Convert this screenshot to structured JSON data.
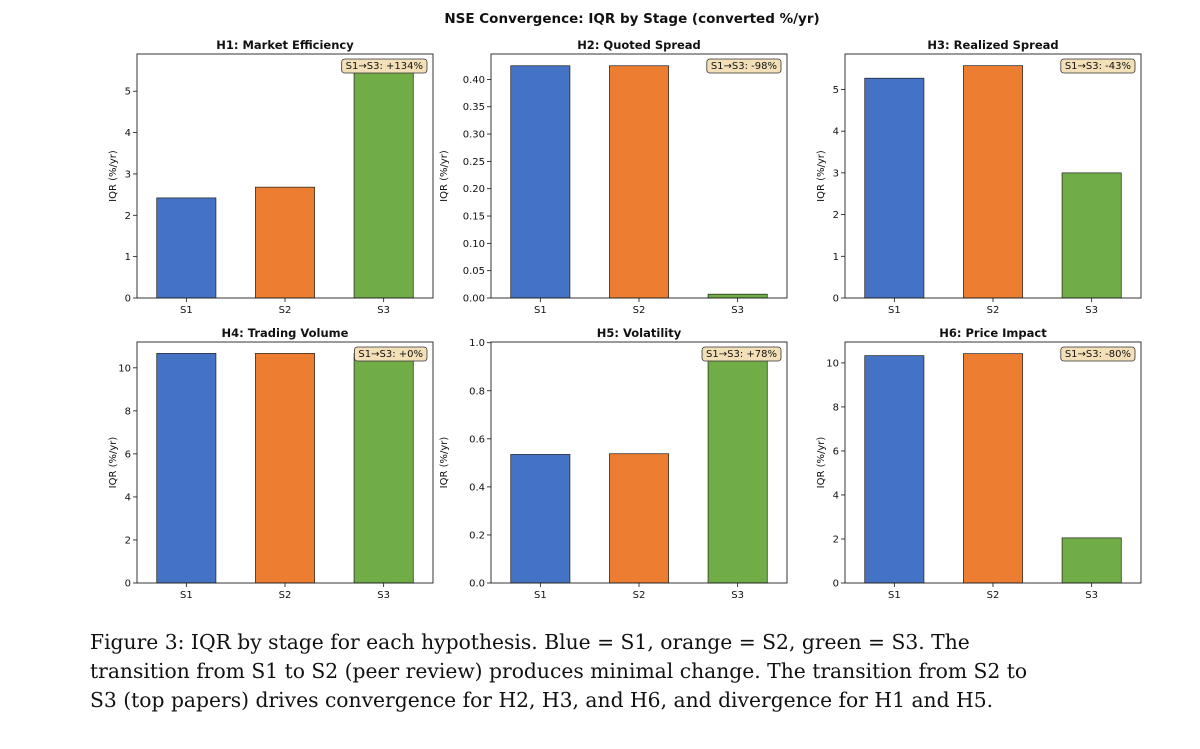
{
  "figure": {
    "suptitle": "NSE Convergence: IQR by Stage (converted %/yr)",
    "caption_lines": [
      "Figure 3:  IQR by stage for each hypothesis.  Blue = S1, orange = S2, green = S3.  The",
      "transition from S1 to S2 (peer review) produces minimal change. The transition from S2 to",
      "S3 (top papers) drives convergence for H2, H3, and H6, and divergence for H1 and H5."
    ]
  },
  "colors": {
    "S1": "#4472c4",
    "S2": "#ed7d31",
    "S3": "#70ad47",
    "annotation_bg": "#f3e0b8"
  },
  "chart_data": [
    {
      "type": "bar",
      "title": "H1: Market Efficiency",
      "ylabel": "IQR (%/yr)",
      "categories": [
        "S1",
        "S2",
        "S3"
      ],
      "values": [
        2.42,
        2.68,
        5.67
      ],
      "ylim": [
        0,
        5.9
      ],
      "yticks": [
        0,
        1,
        2,
        3,
        4,
        5
      ],
      "ytick_labels": [
        "0",
        "1",
        "2",
        "3",
        "4",
        "5"
      ],
      "annotation": "S1→S3: +134%"
    },
    {
      "type": "bar",
      "title": "H2: Quoted Spread",
      "ylabel": "IQR (%/yr)",
      "categories": [
        "S1",
        "S2",
        "S3"
      ],
      "values": [
        0.425,
        0.425,
        0.007
      ],
      "ylim": [
        0,
        0.4465
      ],
      "yticks": [
        0,
        0.05,
        0.1,
        0.15,
        0.2,
        0.25,
        0.3,
        0.35,
        0.4
      ],
      "ytick_labels": [
        "0.00",
        "0.05",
        "0.10",
        "0.15",
        "0.20",
        "0.25",
        "0.30",
        "0.35",
        "0.40"
      ],
      "annotation": "S1→S3: -98%"
    },
    {
      "type": "bar",
      "title": "H3: Realized Spread",
      "ylabel": "IQR (%/yr)",
      "categories": [
        "S1",
        "S2",
        "S3"
      ],
      "values": [
        5.27,
        5.57,
        3.0
      ],
      "ylim": [
        0,
        5.85
      ],
      "yticks": [
        0,
        1,
        2,
        3,
        4,
        5
      ],
      "ytick_labels": [
        "0",
        "1",
        "2",
        "3",
        "4",
        "5"
      ],
      "annotation": "S1→S3: -43%"
    },
    {
      "type": "bar",
      "title": "H4: Trading Volume",
      "ylabel": "IQR (%/yr)",
      "categories": [
        "S1",
        "S2",
        "S3"
      ],
      "values": [
        10.67,
        10.67,
        10.67
      ],
      "ylim": [
        0,
        11.2
      ],
      "yticks": [
        0,
        2,
        4,
        6,
        8,
        10
      ],
      "ytick_labels": [
        "0",
        "2",
        "4",
        "6",
        "8",
        "10"
      ],
      "annotation": "S1→S3: +0%"
    },
    {
      "type": "bar",
      "title": "H5: Volatility",
      "ylabel": "IQR (%/yr)",
      "categories": [
        "S1",
        "S2",
        "S3"
      ],
      "values": [
        0.535,
        0.538,
        0.955
      ],
      "ylim": [
        0,
        1.003
      ],
      "yticks": [
        0,
        0.2,
        0.4,
        0.6,
        0.8,
        1.0
      ],
      "ytick_labels": [
        "0.0",
        "0.2",
        "0.4",
        "0.6",
        "0.8",
        "1.0"
      ],
      "annotation": "S1→S3: +78%"
    },
    {
      "type": "bar",
      "title": "H6: Price Impact",
      "ylabel": "IQR (%/yr)",
      "categories": [
        "S1",
        "S2",
        "S3"
      ],
      "values": [
        10.33,
        10.42,
        2.05
      ],
      "ylim": [
        0,
        10.95
      ],
      "yticks": [
        0,
        2,
        4,
        6,
        8,
        10
      ],
      "ytick_labels": [
        "0",
        "2",
        "4",
        "6",
        "8",
        "10"
      ],
      "annotation": "S1→S3: -80%"
    }
  ]
}
